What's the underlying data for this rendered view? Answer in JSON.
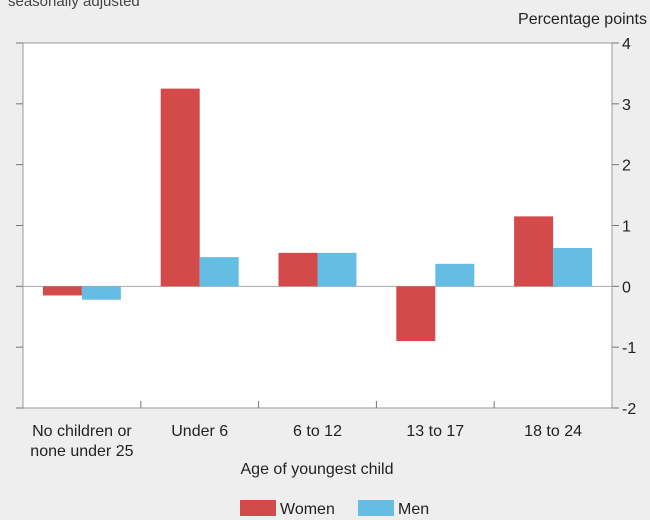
{
  "chart_data": {
    "type": "bar",
    "subtitle": "seasonally adjusted",
    "unit_label": "Percentage points",
    "xlabel": "Age of youngest child",
    "categories": [
      [
        "No children or",
        "none under 25"
      ],
      [
        "Under 6"
      ],
      [
        "6 to 12"
      ],
      [
        "13 to 17"
      ],
      [
        "18 to 24"
      ]
    ],
    "series": [
      {
        "name": "Women",
        "color": "#d24a4a",
        "values": [
          -0.15,
          3.25,
          0.55,
          -0.9,
          1.15
        ]
      },
      {
        "name": "Men",
        "color": "#66bde3",
        "values": [
          -0.22,
          0.48,
          0.55,
          0.37,
          0.63
        ]
      }
    ],
    "ylim": [
      -2,
      4
    ],
    "yticks": [
      "-2",
      "-1",
      "0",
      "1",
      "2",
      "3",
      "4"
    ],
    "grid": false,
    "legend": "bottom-center"
  }
}
